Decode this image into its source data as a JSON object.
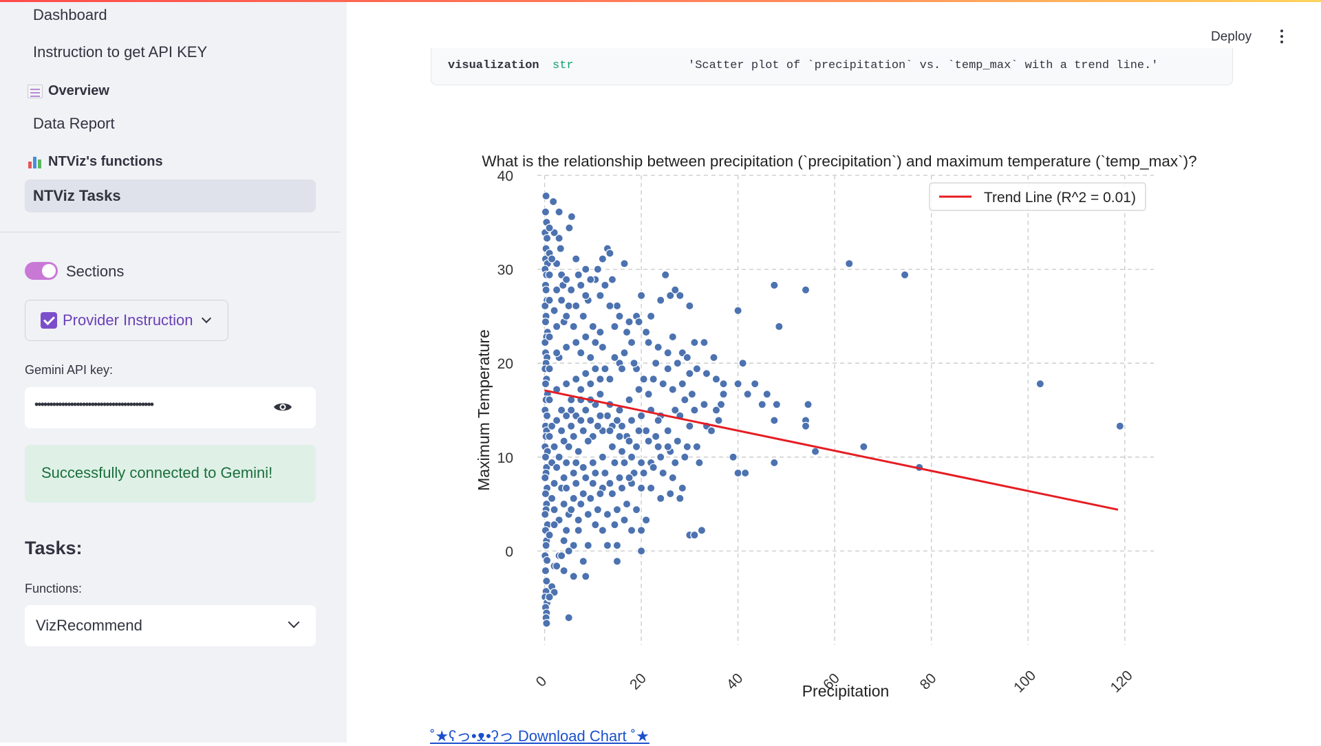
{
  "sidebar": {
    "nav": {
      "dashboard": "Dashboard",
      "api_key_instruction": "Instruction to get API KEY",
      "section_overview": "Overview",
      "data_report": "Data Report",
      "section_functions": "NTViz's functions",
      "active_task": "NTViz Tasks"
    },
    "sections_toggle": {
      "label": "Sections",
      "on": true
    },
    "provider_button": {
      "label": "Provider Instruction"
    },
    "api_key": {
      "label": "Gemini API key:",
      "masked_value": "••••••••••••••••••••••••••••••••••••••••"
    },
    "status_message": "Successfully connected to Gemini!",
    "tasks_heading": "Tasks:",
    "functions": {
      "label": "Functions:",
      "selected": "VizRecommend"
    }
  },
  "header": {
    "deploy_label": "Deploy"
  },
  "code_output": {
    "key": "visualization",
    "type": "str",
    "value": "'Scatter plot of `precipitation` vs. `temp_max` with a trend line.'"
  },
  "chart_data": {
    "type": "scatter",
    "title": "What is the relationship between precipitation (`precipitation`) and maximum temperature (`temp_max`)?",
    "xlabel": "Precipitation",
    "ylabel": "Maximum Temperature",
    "xlim": [
      -1.5,
      126
    ],
    "ylim": [
      -10,
      40
    ],
    "xticks": [
      0,
      20,
      40,
      60,
      80,
      100,
      120
    ],
    "yticks": [
      0,
      10,
      20,
      30,
      40
    ],
    "grid": true,
    "legend": {
      "position": "top-right",
      "entry": "Trend Line (R^2 = 0.01)"
    },
    "colors": {
      "points": "#4c72b0",
      "trend": "#e51c23"
    },
    "trend_line": {
      "x": [
        0,
        118.6
      ],
      "y": [
        17.1,
        4.4
      ]
    },
    "points": [
      [
        0.3,
        37.8
      ],
      [
        1.8,
        37.2
      ],
      [
        0.2,
        36.1
      ],
      [
        0.4,
        35.0
      ],
      [
        0.1,
        33.9
      ],
      [
        0.5,
        33.3
      ],
      [
        0.3,
        32.2
      ],
      [
        0.2,
        31.1
      ],
      [
        0.6,
        30.6
      ],
      [
        0.1,
        30.0
      ],
      [
        0.4,
        29.4
      ],
      [
        0.2,
        28.3
      ],
      [
        0.3,
        27.8
      ],
      [
        0.5,
        26.7
      ],
      [
        0.1,
        26.1
      ],
      [
        0.3,
        25.0
      ],
      [
        0.2,
        24.4
      ],
      [
        0.6,
        23.3
      ],
      [
        0.4,
        22.8
      ],
      [
        0.1,
        22.2
      ],
      [
        0.2,
        21.1
      ],
      [
        0.5,
        20.6
      ],
      [
        0.3,
        20.0
      ],
      [
        0.1,
        19.4
      ],
      [
        0.4,
        18.3
      ],
      [
        0.2,
        17.8
      ],
      [
        0.6,
        16.7
      ],
      [
        0.3,
        16.1
      ],
      [
        0.1,
        15.0
      ],
      [
        0.5,
        14.4
      ],
      [
        0.2,
        13.3
      ],
      [
        0.4,
        12.8
      ],
      [
        0.3,
        12.2
      ],
      [
        0.1,
        11.1
      ],
      [
        0.6,
        10.6
      ],
      [
        0.2,
        10.0
      ],
      [
        0.4,
        8.9
      ],
      [
        0.3,
        8.3
      ],
      [
        0.1,
        7.8
      ],
      [
        0.5,
        6.7
      ],
      [
        0.2,
        6.1
      ],
      [
        0.4,
        5.0
      ],
      [
        0.3,
        4.4
      ],
      [
        0.1,
        3.9
      ],
      [
        0.6,
        2.8
      ],
      [
        0.2,
        2.2
      ],
      [
        0.4,
        1.1
      ],
      [
        0.3,
        0.6
      ],
      [
        0.1,
        -0.5
      ],
      [
        0.5,
        -1.0
      ],
      [
        0.2,
        -2.1
      ],
      [
        0.4,
        -3.2
      ],
      [
        0.3,
        -4.3
      ],
      [
        0.1,
        -4.9
      ],
      [
        0.5,
        -5.5
      ],
      [
        0.2,
        -6.0
      ],
      [
        0.4,
        -6.6
      ],
      [
        0.3,
        -7.1
      ],
      [
        0.6,
        -7.7
      ],
      [
        5.6,
        35.6
      ],
      [
        5.1,
        34.4
      ],
      [
        3.0,
        33.3
      ],
      [
        3.3,
        32.2
      ],
      [
        13.0,
        32.2
      ],
      [
        13.5,
        31.7
      ],
      [
        6.5,
        31.1
      ],
      [
        12.0,
        31.1
      ],
      [
        16.5,
        30.6
      ],
      [
        8.5,
        30.0
      ],
      [
        11.0,
        30.0
      ],
      [
        3.5,
        29.4
      ],
      [
        7.0,
        29.4
      ],
      [
        10.5,
        28.9
      ],
      [
        14.0,
        28.9
      ],
      [
        12.5,
        28.3
      ],
      [
        3.8,
        28.3
      ],
      [
        25.0,
        29.4
      ],
      [
        26.0,
        27.2
      ],
      [
        28.0,
        27.2
      ],
      [
        20.0,
        27.2
      ],
      [
        24.0,
        26.7
      ],
      [
        9.0,
        26.7
      ],
      [
        5.0,
        26.1
      ],
      [
        15.0,
        26.1
      ],
      [
        19.0,
        25.0
      ],
      [
        22.0,
        25.0
      ],
      [
        30.0,
        26.1
      ],
      [
        27.0,
        27.8
      ],
      [
        8.0,
        25.0
      ],
      [
        2.0,
        25.6
      ],
      [
        4.0,
        24.4
      ],
      [
        6.0,
        23.9
      ],
      [
        10.0,
        23.9
      ],
      [
        11.5,
        23.3
      ],
      [
        14.5,
        23.9
      ],
      [
        17.0,
        23.3
      ],
      [
        21.0,
        23.3
      ],
      [
        26.5,
        22.8
      ],
      [
        28.5,
        21.1
      ],
      [
        33.0,
        22.2
      ],
      [
        31.0,
        22.2
      ],
      [
        18.0,
        22.2
      ],
      [
        12.0,
        21.7
      ],
      [
        7.5,
        21.1
      ],
      [
        3.0,
        20.6
      ],
      [
        9.5,
        20.6
      ],
      [
        15.5,
        20.0
      ],
      [
        16.0,
        19.4
      ],
      [
        19.0,
        19.4
      ],
      [
        23.0,
        20.0
      ],
      [
        25.5,
        19.4
      ],
      [
        35.0,
        20.6
      ],
      [
        30.0,
        18.9
      ],
      [
        37.0,
        17.8
      ],
      [
        40.0,
        17.8
      ],
      [
        43.5,
        17.8
      ],
      [
        42.0,
        16.7
      ],
      [
        41.0,
        20.0
      ],
      [
        45.0,
        15.6
      ],
      [
        37.0,
        16.7
      ],
      [
        36.5,
        15.6
      ],
      [
        35.5,
        15.0
      ],
      [
        33.0,
        15.6
      ],
      [
        31.0,
        15.0
      ],
      [
        29.0,
        16.1
      ],
      [
        27.0,
        15.0
      ],
      [
        24.0,
        14.4
      ],
      [
        22.0,
        15.0
      ],
      [
        20.0,
        14.4
      ],
      [
        18.0,
        13.9
      ],
      [
        16.0,
        13.3
      ],
      [
        14.0,
        13.3
      ],
      [
        12.0,
        12.8
      ],
      [
        10.0,
        12.2
      ],
      [
        8.0,
        12.8
      ],
      [
        6.0,
        12.2
      ],
      [
        4.0,
        11.7
      ],
      [
        2.0,
        11.1
      ],
      [
        1.5,
        13.3
      ],
      [
        3.5,
        15.0
      ],
      [
        5.5,
        16.1
      ],
      [
        7.5,
        17.2
      ],
      [
        9.5,
        17.8
      ],
      [
        11.5,
        16.7
      ],
      [
        13.5,
        15.6
      ],
      [
        15.5,
        15.0
      ],
      [
        17.5,
        16.1
      ],
      [
        19.5,
        17.2
      ],
      [
        21.5,
        16.7
      ],
      [
        23.5,
        13.9
      ],
      [
        25.5,
        12.8
      ],
      [
        27.5,
        11.7
      ],
      [
        29.5,
        11.1
      ],
      [
        31.5,
        11.1
      ],
      [
        33.5,
        13.3
      ],
      [
        34.5,
        12.8
      ],
      [
        36.0,
        13.9
      ],
      [
        28.0,
        14.4
      ],
      [
        30.0,
        13.3
      ],
      [
        26.0,
        10.6
      ],
      [
        24.0,
        10.0
      ],
      [
        22.0,
        9.4
      ],
      [
        20.0,
        9.4
      ],
      [
        18.0,
        10.0
      ],
      [
        16.0,
        10.6
      ],
      [
        14.0,
        11.1
      ],
      [
        12.0,
        10.0
      ],
      [
        10.0,
        9.4
      ],
      [
        8.0,
        8.9
      ],
      [
        6.0,
        8.3
      ],
      [
        4.0,
        7.8
      ],
      [
        2.0,
        7.2
      ],
      [
        1.5,
        9.4
      ],
      [
        3.0,
        10.0
      ],
      [
        5.0,
        11.1
      ],
      [
        7.0,
        10.6
      ],
      [
        9.0,
        11.7
      ],
      [
        11.0,
        13.3
      ],
      [
        13.0,
        14.4
      ],
      [
        15.0,
        13.9
      ],
      [
        17.0,
        12.2
      ],
      [
        19.0,
        11.1
      ],
      [
        21.0,
        12.8
      ],
      [
        23.0,
        12.2
      ],
      [
        27.0,
        9.4
      ],
      [
        29.0,
        10.0
      ],
      [
        32.0,
        9.4
      ],
      [
        39.0,
        10.0
      ],
      [
        40.0,
        8.3
      ],
      [
        41.5,
        8.3
      ],
      [
        47.5,
        9.4
      ],
      [
        54.5,
        15.6
      ],
      [
        54.0,
        13.9
      ],
      [
        54.0,
        13.3
      ],
      [
        56.0,
        10.6
      ],
      [
        66.0,
        11.1
      ],
      [
        77.5,
        8.9
      ],
      [
        47.5,
        13.9
      ],
      [
        48.0,
        15.6
      ],
      [
        46.0,
        16.7
      ],
      [
        48.5,
        23.9
      ],
      [
        47.5,
        28.3
      ],
      [
        54.0,
        27.8
      ],
      [
        63.0,
        30.6
      ],
      [
        74.5,
        29.4
      ],
      [
        40.0,
        25.6
      ],
      [
        102.5,
        17.8
      ],
      [
        119.0,
        13.3
      ],
      [
        10.0,
        7.2
      ],
      [
        12.0,
        6.7
      ],
      [
        14.0,
        6.1
      ],
      [
        16.0,
        6.7
      ],
      [
        18.0,
        7.2
      ],
      [
        20.0,
        6.7
      ],
      [
        22.0,
        6.7
      ],
      [
        24.0,
        5.6
      ],
      [
        26.0,
        6.1
      ],
      [
        28.0,
        5.6
      ],
      [
        8.0,
        6.1
      ],
      [
        6.0,
        5.6
      ],
      [
        4.0,
        5.0
      ],
      [
        2.0,
        4.4
      ],
      [
        3.0,
        3.3
      ],
      [
        5.0,
        3.9
      ],
      [
        7.0,
        3.3
      ],
      [
        9.0,
        3.9
      ],
      [
        11.0,
        4.4
      ],
      [
        13.0,
        3.9
      ],
      [
        15.0,
        4.4
      ],
      [
        17.0,
        5.0
      ],
      [
        19.0,
        4.4
      ],
      [
        21.0,
        3.3
      ],
      [
        7.0,
        2.2
      ],
      [
        12.0,
        2.2
      ],
      [
        18.0,
        2.2
      ],
      [
        20.0,
        2.2
      ],
      [
        30.0,
        1.7
      ],
      [
        31.0,
        1.7
      ],
      [
        32.5,
        2.2
      ],
      [
        4.0,
        1.1
      ],
      [
        6.0,
        0.6
      ],
      [
        9.0,
        0.6
      ],
      [
        13.0,
        0.6
      ],
      [
        15.0,
        0.6
      ],
      [
        20.0,
        0.0
      ],
      [
        5.0,
        0.0
      ],
      [
        3.0,
        -0.5
      ],
      [
        8.0,
        -1.1
      ],
      [
        15.0,
        -1.1
      ],
      [
        2.0,
        -1.6
      ],
      [
        4.0,
        -2.1
      ],
      [
        6.0,
        -2.7
      ],
      [
        8.5,
        -2.7
      ],
      [
        1.5,
        -3.8
      ],
      [
        2.0,
        -4.4
      ],
      [
        1.0,
        -5.0
      ],
      [
        5.0,
        -7.1
      ],
      [
        0.4,
        -7.7
      ],
      [
        1.0,
        -4.9
      ],
      [
        2.5,
        -1.6
      ],
      [
        3.5,
        -0.5
      ],
      [
        1.0,
        1.7
      ],
      [
        2.0,
        2.8
      ],
      [
        4.5,
        2.2
      ],
      [
        1.5,
        5.6
      ],
      [
        3.5,
        6.7
      ],
      [
        2.5,
        8.9
      ],
      [
        4.5,
        9.4
      ],
      [
        6.5,
        9.4
      ],
      [
        1.0,
        12.2
      ],
      [
        2.5,
        13.9
      ],
      [
        4.5,
        14.4
      ],
      [
        6.5,
        14.4
      ],
      [
        8.5,
        15.0
      ],
      [
        10.5,
        15.6
      ],
      [
        1.0,
        16.1
      ],
      [
        2.5,
        17.2
      ],
      [
        4.5,
        17.8
      ],
      [
        6.5,
        18.3
      ],
      [
        8.5,
        18.9
      ],
      [
        10.5,
        19.4
      ],
      [
        12.5,
        19.4
      ],
      [
        1.0,
        19.4
      ],
      [
        2.5,
        21.1
      ],
      [
        4.5,
        21.7
      ],
      [
        6.5,
        22.2
      ],
      [
        8.5,
        22.8
      ],
      [
        10.5,
        22.2
      ],
      [
        1.0,
        22.8
      ],
      [
        2.5,
        23.9
      ],
      [
        4.5,
        25.0
      ],
      [
        6.5,
        26.1
      ],
      [
        8.5,
        27.2
      ],
      [
        1.0,
        26.7
      ],
      [
        2.5,
        27.8
      ],
      [
        4.5,
        28.9
      ],
      [
        1.0,
        29.4
      ],
      [
        2.5,
        30.6
      ],
      [
        1.0,
        31.7
      ],
      [
        2.0,
        33.9
      ],
      [
        3.0,
        36.1
      ],
      [
        1.0,
        34.4
      ],
      [
        1.5,
        31.1
      ],
      [
        3.5,
        26.7
      ],
      [
        5.5,
        27.8
      ],
      [
        7.5,
        28.3
      ],
      [
        9.5,
        28.9
      ],
      [
        11.5,
        27.2
      ],
      [
        13.5,
        26.1
      ],
      [
        15.5,
        25.0
      ],
      [
        17.5,
        24.4
      ],
      [
        19.5,
        24.4
      ],
      [
        21.5,
        22.2
      ],
      [
        23.5,
        21.7
      ],
      [
        25.5,
        21.1
      ],
      [
        27.5,
        20.0
      ],
      [
        29.5,
        20.6
      ],
      [
        31.5,
        19.4
      ],
      [
        33.5,
        18.9
      ],
      [
        35.5,
        18.3
      ],
      [
        14.5,
        20.6
      ],
      [
        16.5,
        21.1
      ],
      [
        18.5,
        20.0
      ],
      [
        20.5,
        18.3
      ],
      [
        22.5,
        18.3
      ],
      [
        24.5,
        17.8
      ],
      [
        26.5,
        17.2
      ],
      [
        28.5,
        17.8
      ],
      [
        30.5,
        16.7
      ],
      [
        13.5,
        18.3
      ],
      [
        11.5,
        18.3
      ],
      [
        9.5,
        16.1
      ],
      [
        7.5,
        16.1
      ],
      [
        5.5,
        15.0
      ],
      [
        3.5,
        12.8
      ],
      [
        5.5,
        13.3
      ],
      [
        7.5,
        13.9
      ],
      [
        9.5,
        13.9
      ],
      [
        11.5,
        14.4
      ],
      [
        13.5,
        12.8
      ],
      [
        15.5,
        12.2
      ],
      [
        17.5,
        11.7
      ],
      [
        19.5,
        12.8
      ],
      [
        21.5,
        11.7
      ],
      [
        23.5,
        11.1
      ],
      [
        25.5,
        11.1
      ],
      [
        14.5,
        9.4
      ],
      [
        16.5,
        9.4
      ],
      [
        18.5,
        8.3
      ],
      [
        20.5,
        8.3
      ],
      [
        22.5,
        8.9
      ],
      [
        24.5,
        8.3
      ],
      [
        26.5,
        7.8
      ],
      [
        28.5,
        6.7
      ],
      [
        12.5,
        8.3
      ],
      [
        10.5,
        8.3
      ],
      [
        8.5,
        7.8
      ],
      [
        6.5,
        7.2
      ],
      [
        4.5,
        6.7
      ],
      [
        15.5,
        7.8
      ],
      [
        17.5,
        7.8
      ],
      [
        13.5,
        7.2
      ],
      [
        11.5,
        6.1
      ],
      [
        9.5,
        5.6
      ],
      [
        7.5,
        5.0
      ],
      [
        5.5,
        4.4
      ],
      [
        10.5,
        2.8
      ],
      [
        14.5,
        2.8
      ],
      [
        16.5,
        3.3
      ]
    ]
  },
  "download_link": "˚★ʕっ•ᴥ•ʔっ Download Chart ˚★"
}
